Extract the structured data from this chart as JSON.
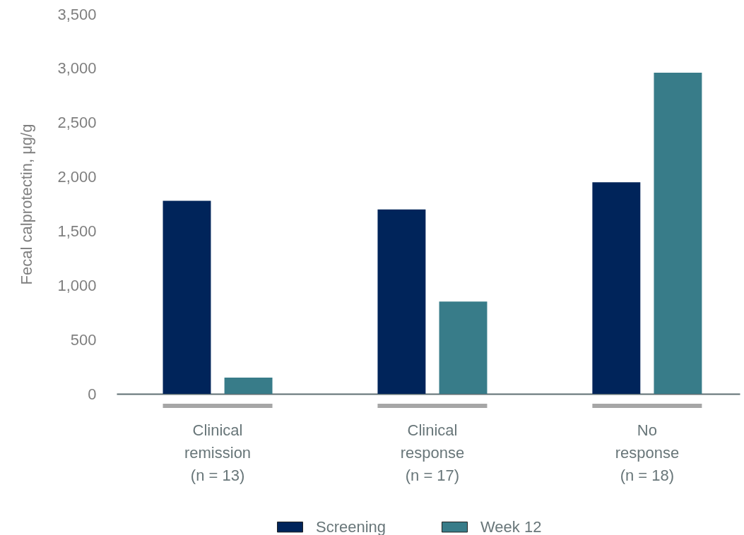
{
  "chart_data": {
    "type": "bar",
    "ylabel": "Fecal calprotectin, μg/g",
    "categories": [
      "Clinical\nremission\n(n = 13)",
      "Clinical\nresponse\n(n = 17)",
      "No\nresponse\n(n = 18)"
    ],
    "series": [
      {
        "name": "Screening",
        "color": "#00245a",
        "values": [
          1780,
          1700,
          1950
        ]
      },
      {
        "name": "Week 12",
        "color": "#387c89",
        "values": [
          150,
          850,
          2960
        ]
      }
    ],
    "ylim": [
      0,
      3500
    ],
    "yticks": [
      0,
      500,
      {
        "value": 1000,
        "label": "1,000"
      },
      {
        "value": 1500,
        "label": "1,500"
      },
      {
        "value": 2000,
        "label": "2,000"
      },
      {
        "value": 2500,
        "label": "2,500"
      },
      {
        "value": 3000,
        "label": "3,000"
      },
      {
        "value": 3500,
        "label": "3,500"
      }
    ],
    "grid": false,
    "legend": "bottom"
  }
}
